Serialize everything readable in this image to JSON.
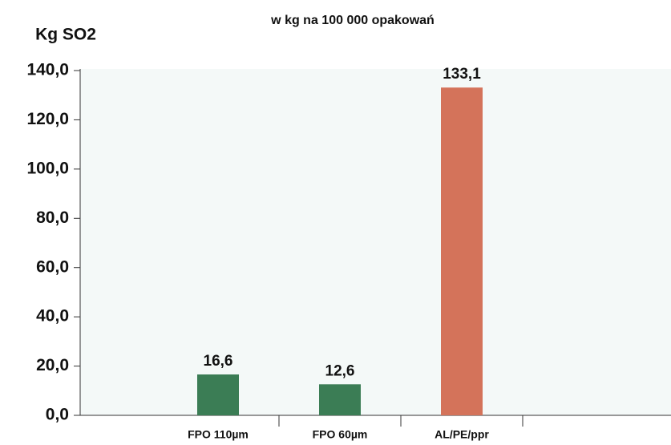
{
  "chart_data": {
    "type": "bar",
    "title": "w kg na 100 000 opakowań",
    "ylabel": "Kg SO2",
    "categories": [
      "FPO 110µm",
      "FPO 60µm",
      "AL/PE/ppr"
    ],
    "values": [
      16.6,
      12.6,
      133.1
    ],
    "value_labels": [
      "16,6",
      "12,6",
      "133,1"
    ],
    "colors": [
      "#3b7d55",
      "#3b7d55",
      "#d4735a"
    ],
    "ylim": [
      0,
      140
    ],
    "yticks": [
      {
        "value": 0,
        "label": "0,0"
      },
      {
        "value": 20,
        "label": "20,0"
      },
      {
        "value": 40,
        "label": "40,0"
      },
      {
        "value": 60,
        "label": "60,0"
      },
      {
        "value": 80,
        "label": "80,0"
      },
      {
        "value": 100,
        "label": "100,0"
      },
      {
        "value": 120,
        "label": "120,0"
      },
      {
        "value": 140,
        "label": "140,0"
      }
    ],
    "grid": false
  }
}
